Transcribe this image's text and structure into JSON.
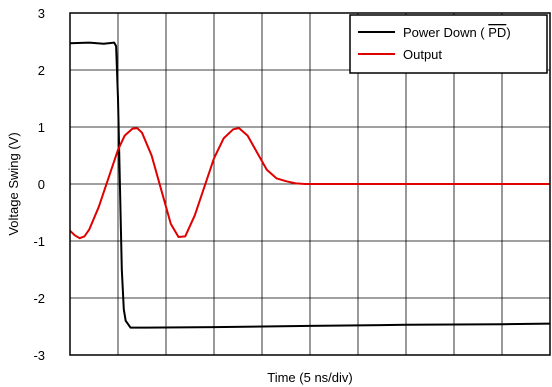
{
  "chart_data": {
    "type": "line",
    "xlabel": "Time (5 ns/div)",
    "ylabel": "Voltage Swing (V)",
    "xlim": [
      0,
      50
    ],
    "ylim": [
      -3,
      3
    ],
    "x_divisions": 10,
    "y_ticks": [
      "-3",
      "-2",
      "-1",
      "0",
      "1",
      "2",
      "3"
    ],
    "grid": true,
    "legend_position": "top-right",
    "series": [
      {
        "name": "Power Down (PD)",
        "legend_prefix": "Power Down ( ",
        "legend_overline": "PD",
        "legend_suffix": ")",
        "color": "#000000",
        "points": [
          [
            0,
            2.47
          ],
          [
            2,
            2.48
          ],
          [
            3.5,
            2.46
          ],
          [
            4.6,
            2.48
          ],
          [
            4.8,
            2.42
          ],
          [
            5.0,
            1.5
          ],
          [
            5.2,
            0.0
          ],
          [
            5.4,
            -1.5
          ],
          [
            5.6,
            -2.2
          ],
          [
            5.8,
            -2.4
          ],
          [
            6.3,
            -2.52
          ],
          [
            8,
            -2.52
          ],
          [
            15,
            -2.51
          ],
          [
            25,
            -2.49
          ],
          [
            35,
            -2.47
          ],
          [
            45,
            -2.46
          ],
          [
            50,
            -2.45
          ]
        ]
      },
      {
        "name": "Output",
        "color": "#e00000",
        "points": [
          [
            0,
            -0.82
          ],
          [
            0.5,
            -0.9
          ],
          [
            1,
            -0.95
          ],
          [
            1.5,
            -0.92
          ],
          [
            2,
            -0.8
          ],
          [
            3,
            -0.4
          ],
          [
            4,
            0.1
          ],
          [
            5,
            0.6
          ],
          [
            5.7,
            0.85
          ],
          [
            6.5,
            0.97
          ],
          [
            7,
            0.98
          ],
          [
            7.5,
            0.9
          ],
          [
            8.5,
            0.5
          ],
          [
            9.5,
            -0.1
          ],
          [
            10.5,
            -0.7
          ],
          [
            11.3,
            -0.93
          ],
          [
            12,
            -0.92
          ],
          [
            13,
            -0.55
          ],
          [
            14,
            -0.05
          ],
          [
            15,
            0.45
          ],
          [
            16,
            0.8
          ],
          [
            17,
            0.96
          ],
          [
            17.6,
            0.98
          ],
          [
            18.5,
            0.85
          ],
          [
            19.5,
            0.55
          ],
          [
            20.5,
            0.25
          ],
          [
            21.5,
            0.1
          ],
          [
            22.5,
            0.05
          ],
          [
            23.5,
            0.01
          ],
          [
            24.5,
            0.0
          ],
          [
            30,
            0.0
          ],
          [
            40,
            0.0
          ],
          [
            50,
            0.0
          ]
        ]
      }
    ]
  }
}
